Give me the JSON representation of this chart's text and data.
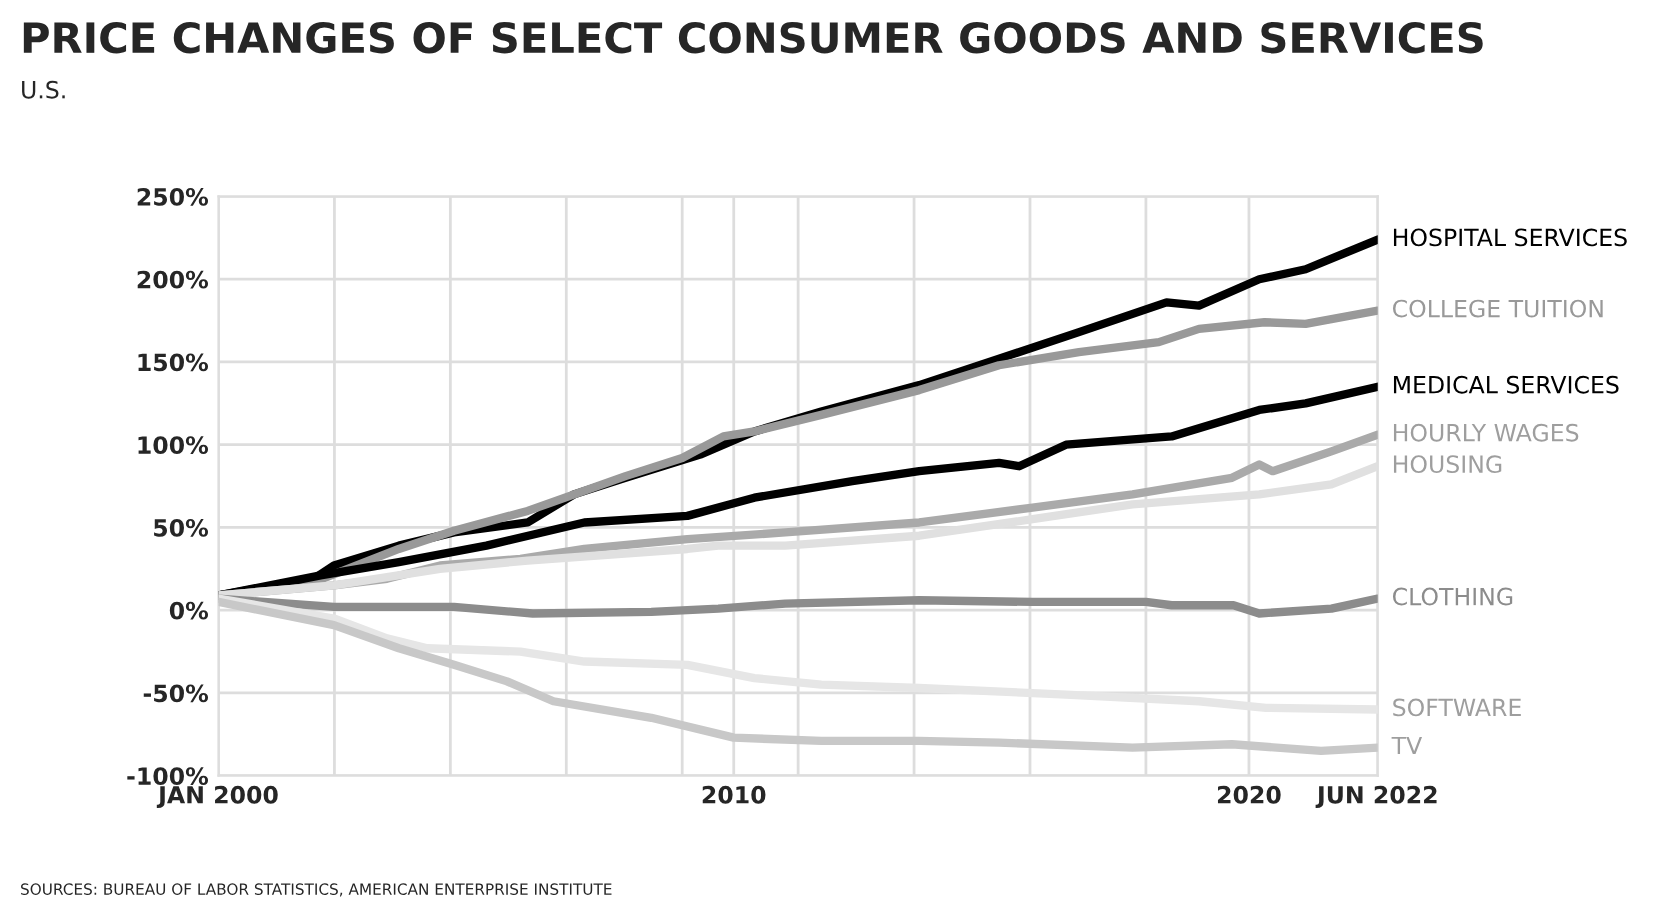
{
  "chart_data": {
    "type": "line",
    "title": "PRICE CHANGES OF SELECT CONSUMER GOODS AND SERVICES",
    "subtitle": "U.S.",
    "annotations": [
      "SOURCES: BUREAU OF LABOR STATISTICS, AMERICAN ENTERPRISE INSTITUTE"
    ],
    "xlim": [
      2000,
      2022.5
    ],
    "ylim": [
      -100,
      250
    ],
    "xticks": [
      {
        "value": 2000,
        "label": "JAN 2000"
      },
      {
        "value": 2002.25,
        "label": null
      },
      {
        "value": 2004.5,
        "label": null
      },
      {
        "value": 2006.75,
        "label": null
      },
      {
        "value": 2009,
        "label": null
      },
      {
        "value": 2010,
        "label": "2010"
      },
      {
        "value": 2011.25,
        "label": null
      },
      {
        "value": 2013.5,
        "label": null
      },
      {
        "value": 2015.75,
        "label": null
      },
      {
        "value": 2018,
        "label": null
      },
      {
        "value": 2020,
        "label": "2020"
      },
      {
        "value": 2022.5,
        "label": "JUN 2022"
      }
    ],
    "yticks": [
      {
        "value": -100,
        "label": "-100%"
      },
      {
        "value": -50,
        "label": "-50%"
      },
      {
        "value": 0,
        "label": "0%"
      },
      {
        "value": 50,
        "label": "50%"
      },
      {
        "value": 100,
        "label": "100%"
      },
      {
        "value": 150,
        "label": "150%"
      },
      {
        "value": 200,
        "label": "200%"
      },
      {
        "value": 250,
        "label": "250%"
      }
    ],
    "grid": true,
    "legend": false,
    "marker": "none",
    "line_style": "solid",
    "series": [
      {
        "name": "HOSPITAL SERVICES",
        "color": "#000000",
        "x": [
          2000,
          2001.85,
          2002.24,
          2003.5,
          2004.57,
          2006,
          2006.9,
          2007.9,
          2009.35,
          2010.4,
          2011.7,
          2013.6,
          2015.15,
          2016.7,
          2018.4,
          2019.03,
          2020.2,
          2021.1,
          2022.5
        ],
        "values": [
          9,
          19,
          27,
          39,
          47,
          53,
          70,
          80,
          94,
          108,
          120,
          136,
          152,
          168,
          186,
          184,
          200,
          206,
          224
        ]
      },
      {
        "name": "COLLEGE TUITION",
        "color": "#999999",
        "x": [
          2000,
          2001.85,
          2003.5,
          2004.57,
          2006,
          2007.9,
          2009,
          2009.8,
          2010.4,
          2011.7,
          2013.6,
          2015.15,
          2016.7,
          2018.25,
          2019.03,
          2020.3,
          2021.1,
          2022.5
        ],
        "values": [
          9,
          17,
          37,
          48,
          60,
          81,
          92,
          105,
          108,
          118,
          133,
          148,
          156,
          162,
          170,
          174,
          173,
          181
        ]
      },
      {
        "name": "MEDICAL SERVICES",
        "color": "#000000",
        "x": [
          2000,
          2001.98,
          2003.5,
          2005.2,
          2007.1,
          2009.1,
          2010.4,
          2012.3,
          2013.6,
          2015.15,
          2015.54,
          2016.45,
          2018.5,
          2020.2,
          2021.1,
          2022.5
        ],
        "values": [
          9,
          21,
          29,
          39,
          53,
          57,
          68,
          78,
          84,
          89,
          87,
          100,
          105,
          121,
          125,
          135
        ]
      },
      {
        "name": "HOURLY WAGES",
        "color": "#aaaaaa",
        "x": [
          2000,
          2002.24,
          2003.27,
          2004.3,
          2005.86,
          2007.1,
          2009.1,
          2011,
          2013.6,
          2015.8,
          2017.74,
          2019.67,
          2020.2,
          2020.46,
          2021.6,
          2022.5
        ],
        "values": [
          9,
          15,
          19,
          27,
          31,
          37,
          43,
          47,
          53,
          62,
          70,
          80,
          88,
          84,
          96,
          106
        ]
      },
      {
        "name": "HOUSING",
        "color": "#e0e0e0",
        "x": [
          2000,
          2002.24,
          2004.3,
          2006,
          2009.1,
          2009.7,
          2011,
          2013.6,
          2015.8,
          2017.74,
          2020.2,
          2021.6,
          2022.5
        ],
        "values": [
          9,
          15,
          25,
          30,
          37,
          39,
          39,
          45,
          55,
          64,
          70,
          76,
          87
        ]
      },
      {
        "name": "CLOTHING",
        "color": "#8c8c8c",
        "x": [
          2000,
          2002.24,
          2004.57,
          2006.1,
          2008.4,
          2009.7,
          2011,
          2013.6,
          2015.8,
          2018,
          2018.5,
          2019.7,
          2020.2,
          2021.6,
          2022.5
        ],
        "values": [
          7,
          2,
          2,
          -2,
          -1,
          1,
          4,
          6,
          5,
          5,
          3,
          3,
          -2,
          1,
          7
        ]
      },
      {
        "name": "SOFTWARE",
        "color": "#e6e6e6",
        "x": [
          2000,
          2002.24,
          2003.27,
          2004.05,
          2005.86,
          2007.1,
          2009.1,
          2010.4,
          2011.7,
          2013.6,
          2016.45,
          2019.03,
          2020.33,
          2022.5
        ],
        "values": [
          7,
          -5,
          -17,
          -23,
          -25,
          -31,
          -33,
          -41,
          -45,
          -47,
          -51,
          -55,
          -59,
          -60
        ]
      },
      {
        "name": "TV",
        "color": "#c8c8c8",
        "x": [
          2000,
          2002.24,
          2003.5,
          2004.57,
          2005.6,
          2006.5,
          2008.4,
          2010,
          2011.7,
          2013.6,
          2015.15,
          2017.74,
          2019.67,
          2021.4,
          2022.5
        ],
        "values": [
          5,
          -9,
          -23,
          -33,
          -43,
          -55,
          -65,
          -77,
          -79,
          -79,
          -80,
          -83,
          -81,
          -85,
          -83
        ]
      }
    ]
  }
}
